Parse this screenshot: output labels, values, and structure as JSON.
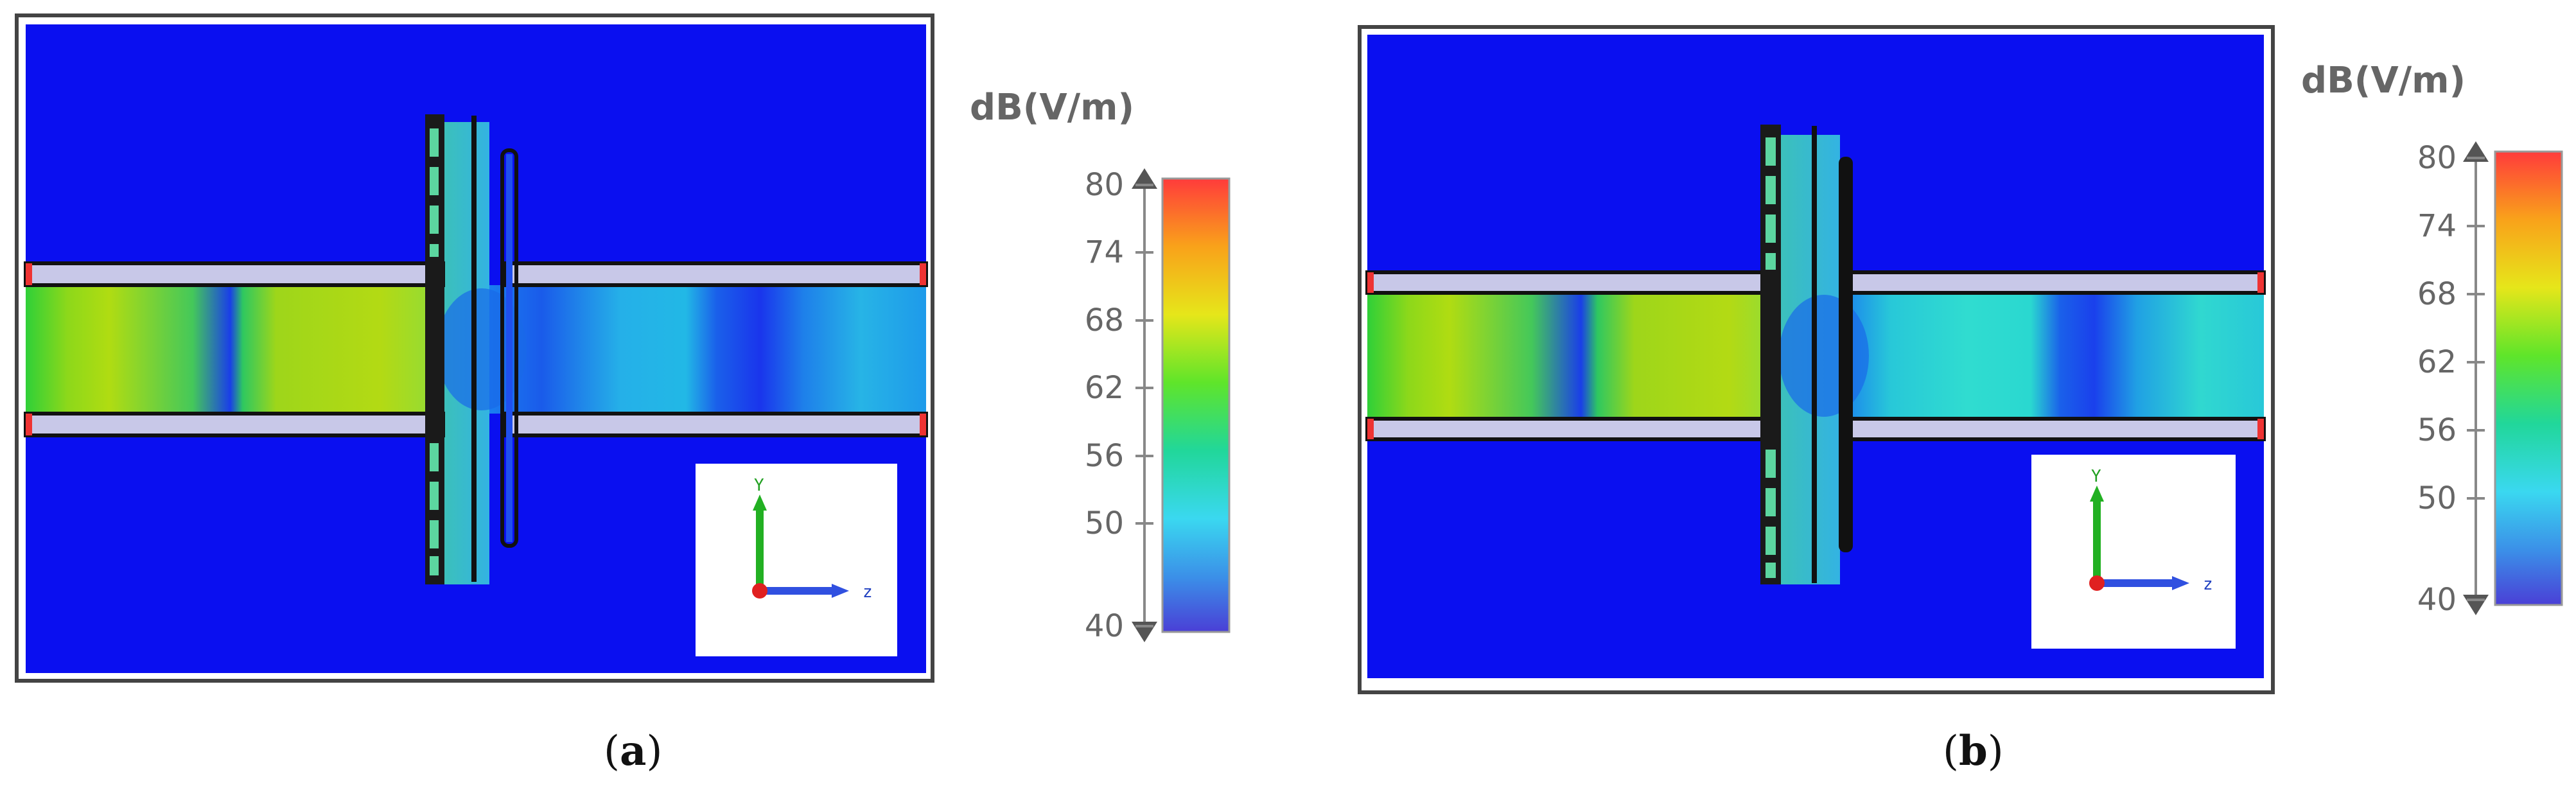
{
  "panels": [
    {
      "id": "a",
      "caption_letter": "a",
      "colorbar": {
        "unit": "dB(V/m)",
        "ticks": [
          "80",
          "74",
          "68",
          "62",
          "56",
          "50",
          "40"
        ]
      },
      "axes": {
        "y": "Y",
        "z": "z"
      }
    },
    {
      "id": "b",
      "caption_letter": "b",
      "colorbar": {
        "unit": "dB(V/m)",
        "ticks": [
          "80",
          "74",
          "68",
          "62",
          "56",
          "50",
          "40"
        ]
      },
      "axes": {
        "y": "Y",
        "z": "z"
      }
    }
  ],
  "colors": {
    "background_field": "#0a0ff0",
    "colorbar_top": "#ff3b3b",
    "colorbar_bottom": "#3f3bd6"
  }
}
